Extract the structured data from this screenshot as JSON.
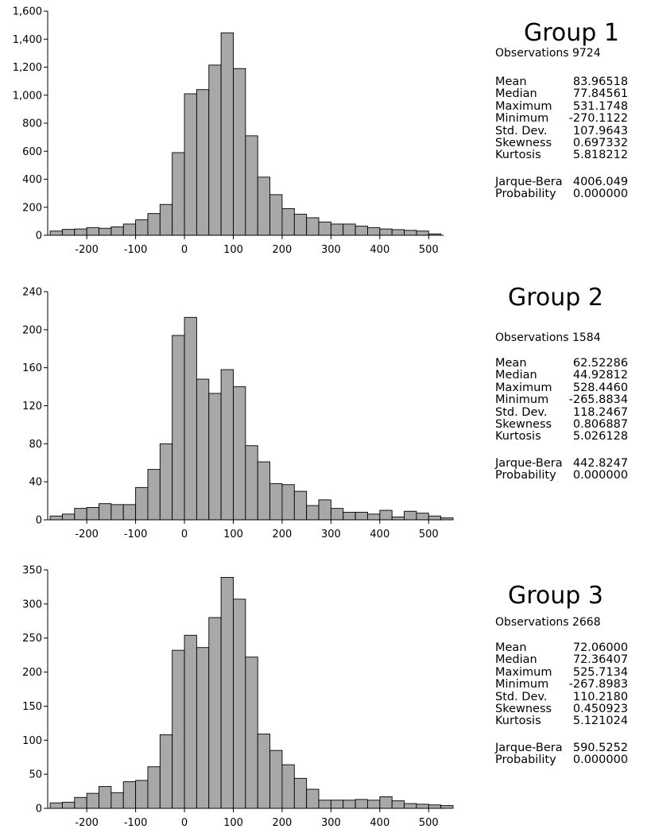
{
  "groups": [
    {
      "title": "Group 1",
      "observations_label": "Observations 9724",
      "stats": [
        {
          "label": "Mean",
          "value": "83.96518"
        },
        {
          "label": "Median",
          "value": "77.84561"
        },
        {
          "label": "Maximum",
          "value": "531.1748"
        },
        {
          "label": "Minimum",
          "value": "-270.1122"
        },
        {
          "label": "Std. Dev.",
          "value": "107.9643"
        },
        {
          "label": "Skewness",
          "value": "0.697332"
        },
        {
          "label": "Kurtosis",
          "value": "5.818212"
        }
      ],
      "tests": [
        {
          "label": "Jarque-Bera",
          "value": "4006.049"
        },
        {
          "label": "Probability",
          "value": "0.000000"
        }
      ]
    },
    {
      "title": "Group 2",
      "observations_label": "Observations 1584",
      "stats": [
        {
          "label": "Mean",
          "value": "62.52286"
        },
        {
          "label": "Median",
          "value": "44.92812"
        },
        {
          "label": "Maximum",
          "value": "528.4460"
        },
        {
          "label": "Minimum",
          "value": "-265.8834"
        },
        {
          "label": "Std. Dev.",
          "value": "118.2467"
        },
        {
          "label": "Skewness",
          "value": "0.806887"
        },
        {
          "label": "Kurtosis",
          "value": "5.026128"
        }
      ],
      "tests": [
        {
          "label": "Jarque-Bera",
          "value": "442.8247"
        },
        {
          "label": "Probability",
          "value": "0.000000"
        }
      ]
    },
    {
      "title": "Group 3",
      "observations_label": "Observations 2668",
      "stats": [
        {
          "label": "Mean",
          "value": "72.06000"
        },
        {
          "label": "Median",
          "value": "72.36407"
        },
        {
          "label": "Maximum",
          "value": "525.7134"
        },
        {
          "label": "Minimum",
          "value": "-267.8983"
        },
        {
          "label": "Std. Dev.",
          "value": "110.2180"
        },
        {
          "label": "Skewness",
          "value": "0.450923"
        },
        {
          "label": "Kurtosis",
          "value": "5.121024"
        }
      ],
      "tests": [
        {
          "label": "Jarque-Bera",
          "value": "590.5252"
        },
        {
          "label": "Probability",
          "value": "0.000000"
        }
      ]
    }
  ],
  "chart_data": [
    {
      "type": "bar",
      "bin_start": -275,
      "bin_width": 25,
      "xlim": [
        -280,
        550
      ],
      "ylim": [
        0,
        1600
      ],
      "x_ticks": [
        -200,
        -100,
        0,
        100,
        200,
        300,
        400,
        500
      ],
      "x_tick_labels": [
        "-200",
        "-100",
        "0",
        "100",
        "200",
        "300",
        "400",
        "500"
      ],
      "y_ticks": [
        0,
        200,
        400,
        600,
        800,
        1000,
        1200,
        1400,
        1600
      ],
      "y_tick_labels": [
        "0",
        "200",
        "400",
        "600",
        "800",
        "1,000",
        "1,200",
        "1,400",
        "1,600"
      ],
      "values": [
        30,
        42,
        45,
        55,
        50,
        60,
        80,
        110,
        155,
        220,
        590,
        1010,
        1040,
        1215,
        1445,
        1190,
        710,
        415,
        290,
        190,
        150,
        125,
        95,
        80,
        80,
        65,
        55,
        45,
        40,
        35,
        30,
        10
      ]
    },
    {
      "type": "bar",
      "bin_start": -275,
      "bin_width": 25,
      "xlim": [
        -280,
        550
      ],
      "ylim": [
        0,
        240
      ],
      "x_ticks": [
        -200,
        -100,
        0,
        100,
        200,
        300,
        400,
        500
      ],
      "x_tick_labels": [
        "-200",
        "-100",
        "0",
        "100",
        "200",
        "300",
        "400",
        "500"
      ],
      "y_ticks": [
        0,
        40,
        80,
        120,
        160,
        200,
        240
      ],
      "y_tick_labels": [
        "0",
        "40",
        "80",
        "120",
        "160",
        "200",
        "240"
      ],
      "values": [
        4,
        6,
        12,
        13,
        17,
        16,
        16,
        34,
        53,
        80,
        194,
        213,
        148,
        133,
        158,
        140,
        78,
        61,
        38,
        37,
        30,
        15,
        21,
        12,
        8,
        8,
        6,
        10,
        3,
        9,
        7,
        4,
        2
      ]
    },
    {
      "type": "bar",
      "bin_start": -275,
      "bin_width": 25,
      "xlim": [
        -280,
        550
      ],
      "ylim": [
        0,
        350
      ],
      "x_ticks": [
        -200,
        -100,
        0,
        100,
        200,
        300,
        400,
        500
      ],
      "x_tick_labels": [
        "-200",
        "-100",
        "0",
        "100",
        "200",
        "300",
        "400",
        "500"
      ],
      "y_ticks": [
        0,
        50,
        100,
        150,
        200,
        250,
        300,
        350
      ],
      "y_tick_labels": [
        "0",
        "50",
        "100",
        "150",
        "200",
        "250",
        "300",
        "350"
      ],
      "values": [
        8,
        9,
        16,
        22,
        32,
        23,
        39,
        41,
        61,
        108,
        232,
        254,
        236,
        280,
        339,
        307,
        222,
        109,
        85,
        64,
        44,
        28,
        12,
        12,
        12,
        13,
        12,
        17,
        11,
        7,
        6,
        5,
        4
      ]
    }
  ]
}
